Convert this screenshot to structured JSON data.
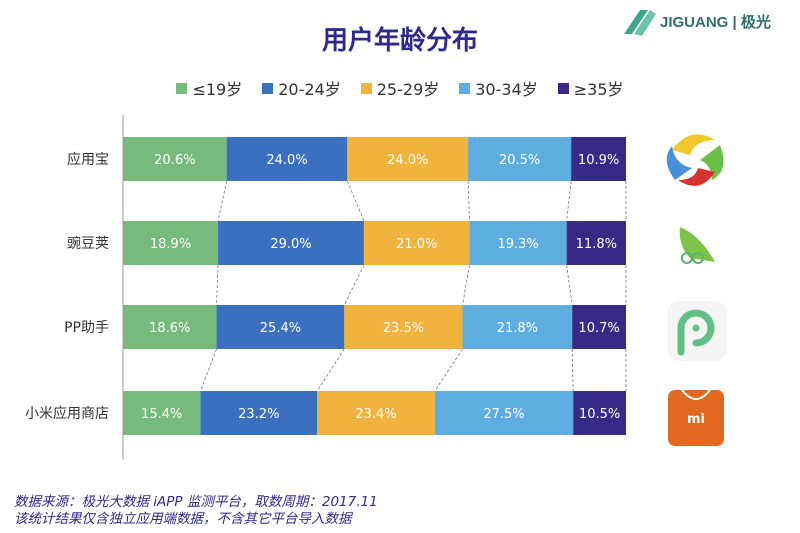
{
  "logo": {
    "text": "JIGUANG",
    "sub": "极光"
  },
  "chart_data": {
    "type": "bar",
    "orientation": "horizontal",
    "stacked": true,
    "title": "用户年龄分布",
    "legend_position": "top",
    "categories": [
      "应用宝",
      "豌豆荚",
      "PP助手",
      "小米应用商店"
    ],
    "series": [
      {
        "name": "≤19岁",
        "color": "#77bb7c",
        "values": [
          20.6,
          18.9,
          18.6,
          15.4
        ]
      },
      {
        "name": "20-24岁",
        "color": "#3b70c0",
        "values": [
          24.0,
          29.0,
          25.4,
          23.2
        ]
      },
      {
        "name": "25-29岁",
        "color": "#efb33e",
        "values": [
          24.0,
          21.0,
          23.5,
          23.4
        ]
      },
      {
        "name": "30-34岁",
        "color": "#5eade1",
        "values": [
          20.5,
          19.3,
          21.8,
          27.5
        ]
      },
      {
        "name": "≥35岁",
        "color": "#352a86",
        "values": [
          10.9,
          11.8,
          10.7,
          10.5
        ]
      }
    ],
    "data_label_suffix": "%",
    "grid": false
  },
  "icons": [
    "yingyongbao-icon",
    "wandoujia-icon",
    "pp-assistant-icon",
    "xiaomi-store-icon"
  ],
  "footer": {
    "line1": "数据来源：极光大数据 iAPP 监测平台，取数周期：2017.11",
    "line2": "该统计结果仅含独立应用端数据，不含其它平台导入数据"
  }
}
